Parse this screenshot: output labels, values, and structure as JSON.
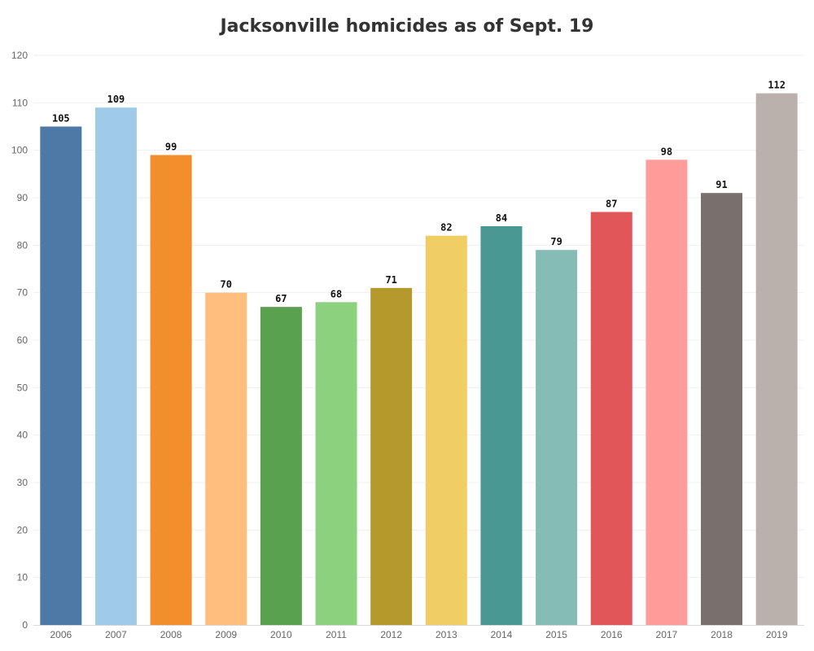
{
  "chart_data": {
    "type": "bar",
    "title": "Jacksonville homicides as of Sept. 19",
    "xlabel": "",
    "ylabel": "",
    "ylim": [
      0,
      120
    ],
    "yticks": [
      "0",
      "10",
      "20",
      "30",
      "40",
      "50",
      "60",
      "70",
      "80",
      "90",
      "100",
      "110",
      "120"
    ],
    "grid": true,
    "categories": [
      "2006",
      "2007",
      "2008",
      "2009",
      "2010",
      "2011",
      "2012",
      "2013",
      "2014",
      "2015",
      "2016",
      "2017",
      "2018",
      "2019"
    ],
    "values": [
      105,
      109,
      99,
      70,
      67,
      68,
      71,
      82,
      84,
      79,
      87,
      98,
      91,
      112
    ],
    "colors": [
      "#4e79a7",
      "#a0cbe8",
      "#f28e2b",
      "#ffbe7d",
      "#59a14f",
      "#8cd17d",
      "#b6992d",
      "#f1ce63",
      "#499894",
      "#86bcb6",
      "#e15759",
      "#ff9d9a",
      "#79706e",
      "#bab0ac"
    ]
  }
}
